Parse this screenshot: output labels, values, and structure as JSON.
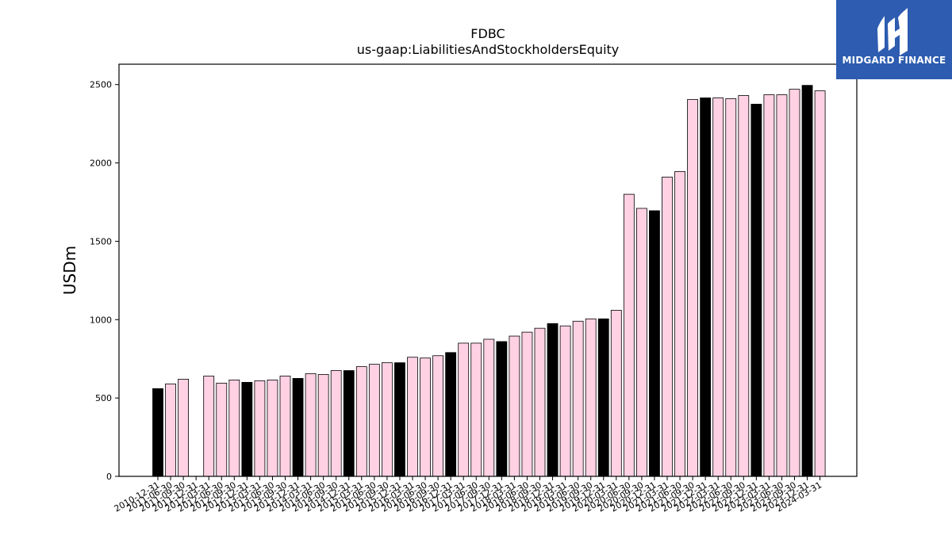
{
  "logo": {
    "text": "MIDGARD FINANCE",
    "icon": "midgard-logo-icon",
    "background": "#2d5cb0"
  },
  "chart_data": {
    "type": "bar",
    "title": "FDBC",
    "subtitle": "us-gaap:LiabilitiesAndStockholdersEquity",
    "xlabel": "",
    "ylabel": "USDm",
    "ylim": [
      0,
      2630
    ],
    "yticks": [
      0,
      500,
      1000,
      1500,
      2000,
      2500
    ],
    "grid": false,
    "colors": {
      "annual": "#000000",
      "quarterly": "#ffd1e3",
      "edge": "#000000"
    },
    "categories": [
      "2010-12-31",
      "2011-06-30",
      "2011-09-30",
      "2011-12-31",
      "2012-03-31",
      "2012-06-30",
      "2012-09-30",
      "2012-12-31",
      "2013-03-31",
      "2013-06-30",
      "2013-09-30",
      "2013-12-31",
      "2014-03-31",
      "2014-06-30",
      "2014-09-30",
      "2014-12-31",
      "2015-03-31",
      "2015-06-30",
      "2015-09-30",
      "2015-12-31",
      "2016-03-31",
      "2016-06-30",
      "2016-09-30",
      "2016-12-31",
      "2017-03-31",
      "2017-06-30",
      "2017-09-30",
      "2017-12-31",
      "2018-03-31",
      "2018-06-30",
      "2018-09-30",
      "2018-12-31",
      "2019-03-31",
      "2019-06-30",
      "2019-09-30",
      "2019-12-31",
      "2020-03-31",
      "2020-06-30",
      "2020-09-30",
      "2020-12-31",
      "2021-03-31",
      "2021-06-30",
      "2021-09-30",
      "2021-12-31",
      "2022-03-31",
      "2022-06-30",
      "2022-09-30",
      "2022-12-31",
      "2023-03-31",
      "2023-06-30",
      "2023-09-30",
      "2023-12-31",
      "2024-03-31"
    ],
    "series": [
      {
        "values": [
          560,
          590,
          620,
          null,
          640,
          595,
          615,
          600,
          610,
          615,
          640,
          625,
          655,
          650,
          675,
          675,
          700,
          715,
          725,
          725,
          760,
          755,
          770,
          790,
          850,
          850,
          875,
          860,
          895,
          920,
          945,
          975,
          960,
          990,
          1005,
          1005,
          1060,
          1800,
          1710,
          1695,
          1910,
          1945,
          2405,
          2415,
          2415,
          2410,
          2430,
          2375,
          2435,
          2435,
          2470,
          2495,
          2460
        ],
        "annual": [
          true,
          false,
          false,
          false,
          false,
          false,
          false,
          true,
          false,
          false,
          false,
          true,
          false,
          false,
          false,
          true,
          false,
          false,
          false,
          true,
          false,
          false,
          false,
          true,
          false,
          false,
          false,
          true,
          false,
          false,
          false,
          true,
          false,
          false,
          false,
          true,
          false,
          false,
          false,
          true,
          false,
          false,
          false,
          true,
          false,
          false,
          false,
          true,
          false,
          false,
          false,
          true,
          false
        ]
      }
    ]
  }
}
